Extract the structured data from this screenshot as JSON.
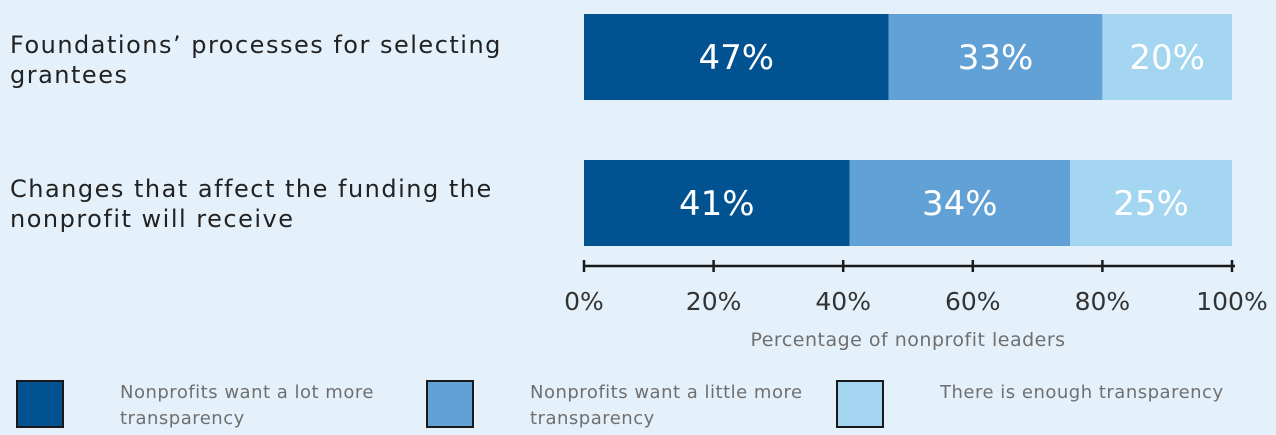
{
  "chart_data": {
    "type": "bar",
    "orientation": "horizontal",
    "stacked": true,
    "categories": [
      "Foundations’ processes for selecting grantees",
      "Changes that affect the funding the nonprofit will receive"
    ],
    "series": [
      {
        "name": "Nonprofits want a lot more transparency",
        "values": [
          47,
          41
        ],
        "labels": [
          "47%",
          "41%"
        ],
        "color": "#005291"
      },
      {
        "name": "Nonprofits want a little more transparency",
        "values": [
          33,
          34
        ],
        "labels": [
          "33%",
          "34%"
        ],
        "color": "#62a1d6"
      },
      {
        "name": "There is enough transparency",
        "values": [
          20,
          25
        ],
        "labels": [
          "20%",
          "25%"
        ],
        "color": "#a4d5f1"
      }
    ],
    "xlim": [
      0,
      100
    ],
    "xticks": [
      0,
      20,
      40,
      60,
      80,
      100
    ],
    "xtick_labels": [
      "0%",
      "20%",
      "40%",
      "60%",
      "80%",
      "100%"
    ],
    "xlabel": "Percentage of nonprofit leaders",
    "title": "",
    "grid": false,
    "legend_position": "bottom"
  }
}
